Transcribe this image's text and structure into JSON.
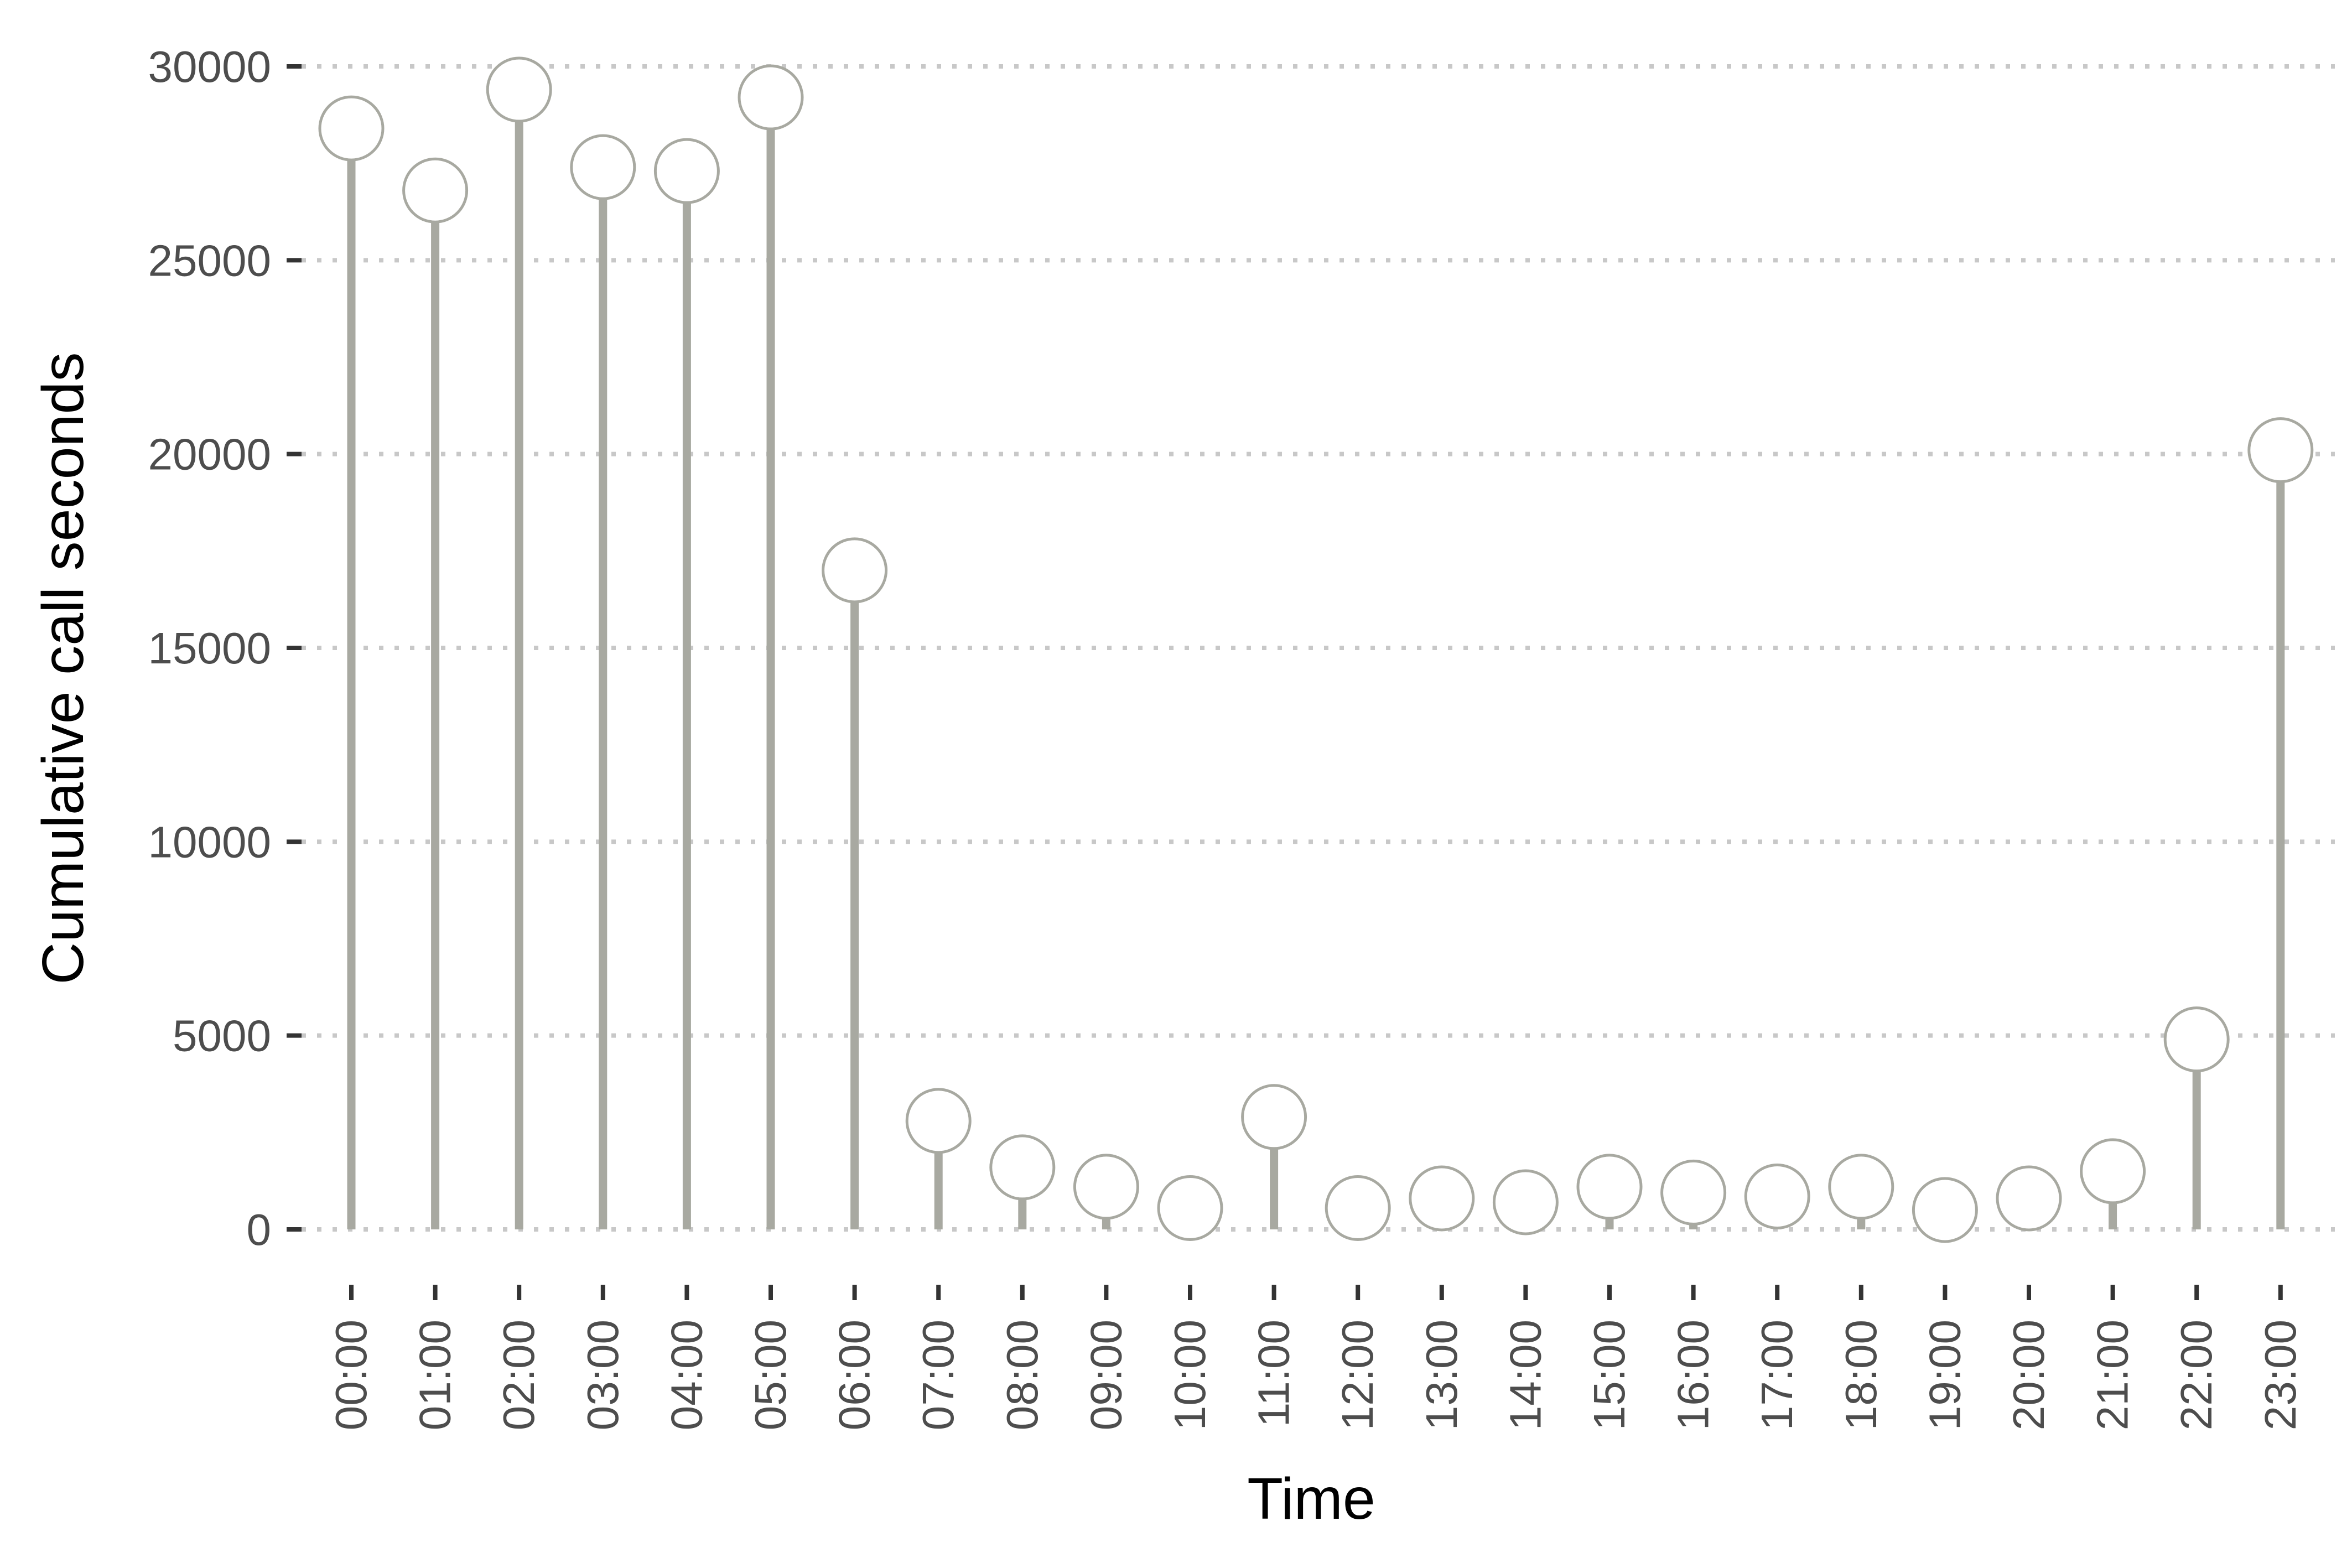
{
  "chart_data": {
    "type": "lollipop",
    "title": "",
    "xlabel": "Time",
    "ylabel": "Cumulative call seconds",
    "ylim": [
      0,
      30000
    ],
    "yticks": [
      0,
      5000,
      10000,
      15000,
      20000,
      25000,
      30000
    ],
    "grid": "horizontal dotted",
    "legend": "none",
    "categories": [
      "00:00",
      "01:00",
      "02:00",
      "03:00",
      "04:00",
      "05:00",
      "06:00",
      "07:00",
      "08:00",
      "09:00",
      "10:00",
      "11:00",
      "12:00",
      "13:00",
      "14:00",
      "15:00",
      "16:00",
      "17:00",
      "18:00",
      "19:00",
      "20:00",
      "21:00",
      "22:00",
      "23:00"
    ],
    "values": [
      28400,
      26800,
      29400,
      27400,
      27300,
      29200,
      17000,
      2800,
      1600,
      1100,
      550,
      2900,
      550,
      800,
      700,
      1100,
      950,
      850,
      1100,
      500,
      800,
      1500,
      4900,
      20100
    ],
    "colors": {
      "stem": "#a8a9a1",
      "marker_stroke": "#a8a9a1",
      "marker_fill": "#ffffff",
      "grid": "#c8c8c8",
      "ticks": "#333333"
    }
  }
}
